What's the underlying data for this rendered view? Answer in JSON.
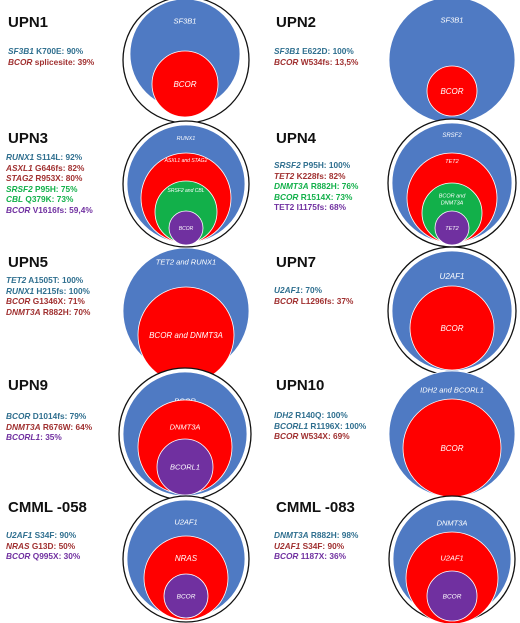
{
  "colors": {
    "blue": "#4f7ac3",
    "red": "#ff0000",
    "green": "#12b04a",
    "purple": "#7030a0",
    "teal": "#2f6f8f",
    "darkred": "#a03030",
    "outline": "#111111"
  },
  "panels": [
    {
      "title": "UPN1",
      "mutations": [
        {
          "gene": "SF3B1",
          "detail": " K700E: 90%",
          "color": "teal",
          "gene_italic": true
        },
        {
          "gene": "BCOR",
          "detail": " splicesite: 39%",
          "color": "darkred",
          "gene_italic": true
        }
      ],
      "circles": [
        {
          "fill": "outer",
          "label": ""
        },
        {
          "fill": "blue",
          "label": "SF3B1"
        },
        {
          "fill": "red",
          "label": "BCOR"
        }
      ]
    },
    {
      "title": "UPN2",
      "mutations": [
        {
          "gene": "SF3B1",
          "detail": " E622D: 100%",
          "color": "teal",
          "gene_italic": true
        },
        {
          "gene": "BCOR",
          "detail": " W534fs: 13,5%",
          "color": "darkred",
          "gene_italic": true
        }
      ],
      "circles": [
        {
          "fill": "blue",
          "label": "SF3B1"
        },
        {
          "fill": "red",
          "label": "BCOR"
        }
      ]
    },
    {
      "title": "UPN3",
      "mutations": [
        {
          "gene": "RUNX1",
          "detail": " S114L: 92%",
          "color": "teal",
          "gene_italic": true
        },
        {
          "gene": "ASXL1",
          "detail": " G646fs: 82%",
          "color": "darkred",
          "gene_italic": true
        },
        {
          "gene": "STAG2",
          "detail": " R953X: 80%",
          "color": "darkred",
          "gene_italic": true
        },
        {
          "gene": "SRSF2",
          "detail": " P95H: 75%",
          "color": "green",
          "gene_italic": true
        },
        {
          "gene": "CBL",
          "detail": " Q379K: 73%",
          "color": "green",
          "gene_italic": true
        },
        {
          "gene": "BCOR",
          "detail": " V1616fs: 59,4%",
          "color": "purple",
          "gene_italic": true
        }
      ],
      "circles": [
        {
          "fill": "outer",
          "label": ""
        },
        {
          "fill": "blue",
          "label": "RUNX1"
        },
        {
          "fill": "red",
          "label": "ASXL1 and STAG2"
        },
        {
          "fill": "green",
          "label": "SRSF2 and CBL"
        },
        {
          "fill": "purple",
          "label": "BCOR"
        }
      ]
    },
    {
      "title": "UPN4",
      "mutations": [
        {
          "gene": "SRSF2",
          "detail": " P95H: 100%",
          "color": "teal",
          "gene_italic": true
        },
        {
          "gene": "TET2",
          "detail": " K228fs: 82%",
          "color": "darkred",
          "gene_italic": true
        },
        {
          "gene": "DNMT3A",
          "detail": " R882H: 76%",
          "color": "green",
          "gene_italic": true
        },
        {
          "gene": "BCOR",
          "detail": " R1514X: 73%",
          "color": "green",
          "gene_italic": true
        },
        {
          "gene": "TET2",
          "detail": " I1175fs: 68%",
          "color": "purple",
          "gene_italic": false
        }
      ],
      "circles": [
        {
          "fill": "outer",
          "label": ""
        },
        {
          "fill": "blue",
          "label": "SRSF2"
        },
        {
          "fill": "red",
          "label": "TET2"
        },
        {
          "fill": "green",
          "label": "BCOR and|DNMT3A"
        },
        {
          "fill": "purple",
          "label": "TET2"
        }
      ]
    },
    {
      "title": "UPN5",
      "mutations": [
        {
          "gene": "TET2",
          "detail": " A1505T: 100%",
          "color": "teal",
          "gene_italic": true
        },
        {
          "gene": "RUNX1",
          "detail": " H215fs: 100%",
          "color": "teal",
          "gene_italic": true
        },
        {
          "gene": "BCOR",
          "detail": " G1346X: 71%",
          "color": "darkred",
          "gene_italic": true
        },
        {
          "gene": "DNMT3A",
          "detail": " R882H: 70%",
          "color": "darkred",
          "gene_italic": true
        }
      ],
      "circles": [
        {
          "fill": "blue",
          "label": "TET2 and RUNX1"
        },
        {
          "fill": "red",
          "label": "BCOR and DNMT3A"
        }
      ]
    },
    {
      "title": "UPN7",
      "mutations": [
        {
          "gene": "U2AF1",
          "detail": ": 70%",
          "color": "teal",
          "gene_italic": true
        },
        {
          "gene": "BCOR",
          "detail": " L1296fs: 37%",
          "color": "darkred",
          "gene_italic": true
        }
      ],
      "circles": [
        {
          "fill": "outer",
          "label": ""
        },
        {
          "fill": "blue",
          "label": "U2AF1"
        },
        {
          "fill": "red",
          "label": "BCOR"
        }
      ]
    },
    {
      "title": "UPN9",
      "mutations": [
        {
          "gene": "BCOR",
          "detail": " D1014fs: 79%",
          "color": "teal",
          "gene_italic": true
        },
        {
          "gene": "DNMT3A",
          "detail": " R676W: 64%",
          "color": "darkred",
          "gene_italic": true
        },
        {
          "gene": "BCORL1",
          "detail": ": 35%",
          "color": "purple",
          "gene_italic": true
        }
      ],
      "circles": [
        {
          "fill": "outer",
          "label": ""
        },
        {
          "fill": "blue",
          "label": "BCOR"
        },
        {
          "fill": "red",
          "label": "DNMT3A"
        },
        {
          "fill": "purple",
          "label": "BCORL1"
        }
      ]
    },
    {
      "title": "UPN10",
      "mutations": [
        {
          "gene": "IDH2",
          "detail": " R140Q: 100%",
          "color": "teal",
          "gene_italic": true
        },
        {
          "gene": "BCORL1",
          "detail": " R1196X: 100%",
          "color": "teal",
          "gene_italic": true
        },
        {
          "gene": "BCOR",
          "detail": " W534X: 69%",
          "color": "darkred",
          "gene_italic": true
        }
      ],
      "circles": [
        {
          "fill": "blue",
          "label": "IDH2 and BCORL1"
        },
        {
          "fill": "red",
          "label": "BCOR"
        }
      ]
    },
    {
      "title": "CMML -058",
      "mutations": [
        {
          "gene": "U2AF1",
          "detail": " S34F: 90%",
          "color": "teal",
          "gene_italic": true
        },
        {
          "gene": "NRAS",
          "detail": " G13D: 50%",
          "color": "darkred",
          "gene_italic": true
        },
        {
          "gene": "BCOR",
          "detail": " Q995X: 30%",
          "color": "purple",
          "gene_italic": true
        }
      ],
      "circles": [
        {
          "fill": "outer",
          "label": ""
        },
        {
          "fill": "blue",
          "label": "U2AF1"
        },
        {
          "fill": "red",
          "label": "NRAS"
        },
        {
          "fill": "purple",
          "label": "BCOR"
        }
      ]
    },
    {
      "title": "CMML -083",
      "mutations": [
        {
          "gene": "DNMT3A",
          "detail": " R882H: 98%",
          "color": "teal",
          "gene_italic": true
        },
        {
          "gene": "U2AF1",
          "detail": " S34F: 90%",
          "color": "darkred",
          "gene_italic": true
        },
        {
          "gene": "BCOR",
          "detail": " 1187X: 36%",
          "color": "purple",
          "gene_italic": true
        }
      ],
      "circles": [
        {
          "fill": "outer",
          "label": ""
        },
        {
          "fill": "blue",
          "label": "DNMT3A"
        },
        {
          "fill": "red",
          "label": "U2AF1"
        },
        {
          "fill": "purple",
          "label": "BCOR"
        }
      ]
    }
  ]
}
